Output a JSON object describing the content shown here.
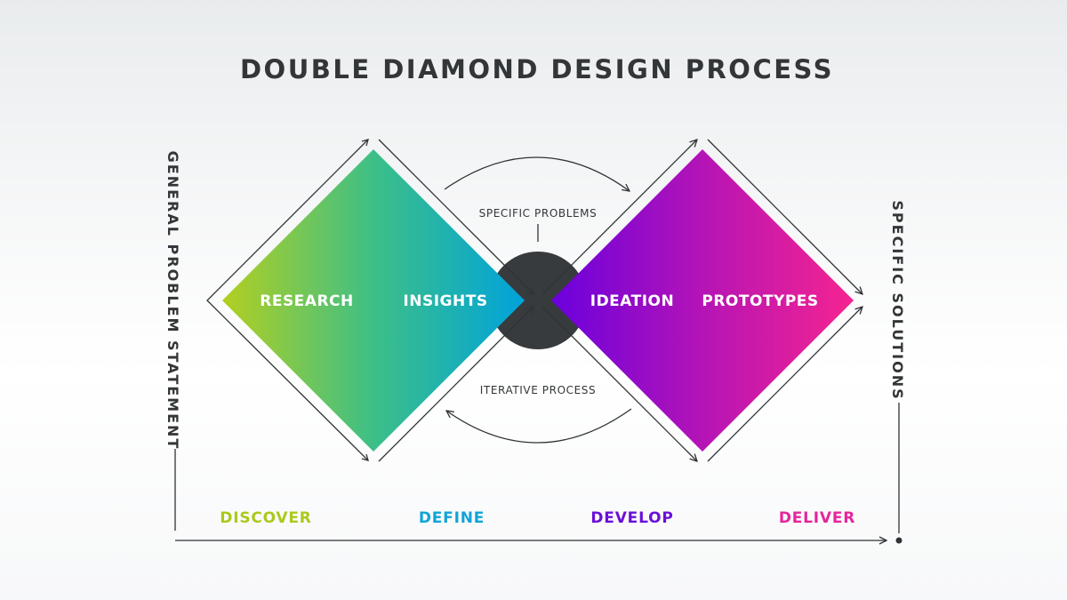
{
  "title": "DOUBLE DIAMOND DESIGN PROCESS",
  "left_axis_label": "GENERAL PROBLEM STATEMENT",
  "right_axis_label": "SPECIFIC SOLUTIONS",
  "diamond_1": {
    "labels": [
      "RESEARCH",
      "INSIGHTS"
    ],
    "gradient": [
      "#b3cf21",
      "#3dbf87",
      "#00a3db"
    ]
  },
  "diamond_2": {
    "labels": [
      "IDEATION",
      "PROTOTYPES"
    ],
    "gradient": [
      "#6a00dd",
      "#b514b6",
      "#f52490"
    ]
  },
  "center_notes": {
    "top": "SPECIFIC PROBLEMS",
    "bottom": "ITERATIVE PROCESS"
  },
  "phases": [
    {
      "label": "DISCOVER",
      "color": "#aac91c"
    },
    {
      "label": "DEFINE",
      "color": "#10a4d8"
    },
    {
      "label": "DEVELOP",
      "color": "#6a10d8"
    },
    {
      "label": "DELIVER",
      "color": "#e5259b"
    }
  ],
  "colors": {
    "text": "#333638",
    "center_circle": "#383b3d"
  }
}
